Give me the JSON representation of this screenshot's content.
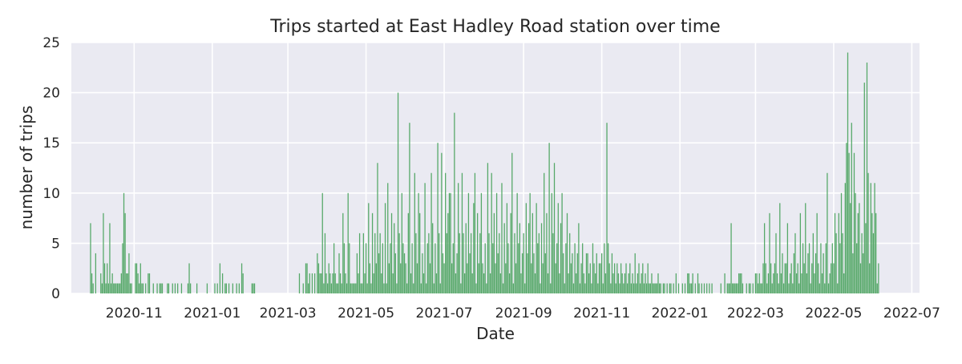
{
  "chart_data": {
    "type": "bar",
    "title": "Trips started at East Hadley Road station over time",
    "xlabel": "Date",
    "ylabel": "number of trips",
    "x_range": [
      "2020-09-13",
      "2022-07-07"
    ],
    "ylim": [
      0,
      25
    ],
    "x_ticks": [
      "2020-11",
      "2021-01",
      "2021-03",
      "2021-05",
      "2021-07",
      "2021-09",
      "2021-11",
      "2022-01",
      "2022-03",
      "2022-05",
      "2022-07"
    ],
    "y_ticks": [
      "0",
      "5",
      "10",
      "15",
      "20",
      "25"
    ],
    "grid": true,
    "bar_color": "#55a868",
    "plot_background": "#eaeaf2",
    "grid_color": "#ffffff",
    "x": [
      "2020-09-28",
      "2020-09-29",
      "2020-09-30",
      "2020-10-02",
      "2020-10-06",
      "2020-10-07",
      "2020-10-08",
      "2020-10-09",
      "2020-10-10",
      "2020-10-11",
      "2020-10-12",
      "2020-10-13",
      "2020-10-14",
      "2020-10-15",
      "2020-10-16",
      "2020-10-17",
      "2020-10-18",
      "2020-10-19",
      "2020-10-20",
      "2020-10-21",
      "2020-10-22",
      "2020-10-23",
      "2020-10-24",
      "2020-10-25",
      "2020-10-26",
      "2020-10-27",
      "2020-10-28",
      "2020-10-29",
      "2020-10-30",
      "2020-11-02",
      "2020-11-03",
      "2020-11-04",
      "2020-11-05",
      "2020-11-06",
      "2020-11-07",
      "2020-11-08",
      "2020-11-10",
      "2020-11-12",
      "2020-11-13",
      "2020-11-16",
      "2020-11-19",
      "2020-11-21",
      "2020-11-22",
      "2020-11-23",
      "2020-11-27",
      "2020-11-28",
      "2020-12-01",
      "2020-12-03",
      "2020-12-05",
      "2020-12-08",
      "2020-12-13",
      "2020-12-14",
      "2020-12-15",
      "2020-12-20",
      "2020-12-28",
      "2021-01-03",
      "2021-01-05",
      "2021-01-07",
      "2021-01-09",
      "2021-01-11",
      "2021-01-12",
      "2021-01-14",
      "2021-01-17",
      "2021-01-20",
      "2021-01-22",
      "2021-01-24",
      "2021-01-25",
      "2021-02-01",
      "2021-02-02",
      "2021-02-03",
      "2021-03-10",
      "2021-03-13",
      "2021-03-15",
      "2021-03-16",
      "2021-03-17",
      "2021-03-18",
      "2021-03-20",
      "2021-03-22",
      "2021-03-24",
      "2021-03-25",
      "2021-03-26",
      "2021-03-27",
      "2021-03-28",
      "2021-03-29",
      "2021-03-30",
      "2021-03-31",
      "2021-04-01",
      "2021-04-02",
      "2021-04-03",
      "2021-04-04",
      "2021-04-05",
      "2021-04-06",
      "2021-04-07",
      "2021-04-08",
      "2021-04-09",
      "2021-04-10",
      "2021-04-11",
      "2021-04-12",
      "2021-04-13",
      "2021-04-14",
      "2021-04-15",
      "2021-04-16",
      "2021-04-17",
      "2021-04-18",
      "2021-04-19",
      "2021-04-20",
      "2021-04-21",
      "2021-04-22",
      "2021-04-23",
      "2021-04-24",
      "2021-04-25",
      "2021-04-26",
      "2021-04-27",
      "2021-04-28",
      "2021-04-29",
      "2021-04-30",
      "2021-05-01",
      "2021-05-02",
      "2021-05-03",
      "2021-05-04",
      "2021-05-05",
      "2021-05-06",
      "2021-05-07",
      "2021-05-08",
      "2021-05-09",
      "2021-05-10",
      "2021-05-11",
      "2021-05-12",
      "2021-05-13",
      "2021-05-14",
      "2021-05-15",
      "2021-05-16",
      "2021-05-17",
      "2021-05-18",
      "2021-05-19",
      "2021-05-20",
      "2021-05-21",
      "2021-05-22",
      "2021-05-23",
      "2021-05-24",
      "2021-05-25",
      "2021-05-26",
      "2021-05-27",
      "2021-05-28",
      "2021-05-29",
      "2021-05-30",
      "2021-05-31",
      "2021-06-01",
      "2021-06-02",
      "2021-06-03",
      "2021-06-04",
      "2021-06-05",
      "2021-06-06",
      "2021-06-07",
      "2021-06-08",
      "2021-06-09",
      "2021-06-10",
      "2021-06-11",
      "2021-06-12",
      "2021-06-13",
      "2021-06-14",
      "2021-06-15",
      "2021-06-16",
      "2021-06-17",
      "2021-06-18",
      "2021-06-19",
      "2021-06-20",
      "2021-06-21",
      "2021-06-22",
      "2021-06-23",
      "2021-06-24",
      "2021-06-25",
      "2021-06-26",
      "2021-06-27",
      "2021-06-28",
      "2021-06-29",
      "2021-06-30",
      "2021-07-01",
      "2021-07-02",
      "2021-07-03",
      "2021-07-04",
      "2021-07-05",
      "2021-07-06",
      "2021-07-07",
      "2021-07-08",
      "2021-07-09",
      "2021-07-10",
      "2021-07-11",
      "2021-07-12",
      "2021-07-13",
      "2021-07-14",
      "2021-07-15",
      "2021-07-16",
      "2021-07-17",
      "2021-07-18",
      "2021-07-19",
      "2021-07-20",
      "2021-07-21",
      "2021-07-22",
      "2021-07-23",
      "2021-07-24",
      "2021-07-25",
      "2021-07-26",
      "2021-07-27",
      "2021-07-28",
      "2021-07-29",
      "2021-07-30",
      "2021-07-31",
      "2021-08-01",
      "2021-08-02",
      "2021-08-03",
      "2021-08-04",
      "2021-08-05",
      "2021-08-06",
      "2021-08-07",
      "2021-08-08",
      "2021-08-09",
      "2021-08-10",
      "2021-08-11",
      "2021-08-12",
      "2021-08-13",
      "2021-08-14",
      "2021-08-15",
      "2021-08-16",
      "2021-08-17",
      "2021-08-18",
      "2021-08-19",
      "2021-08-20",
      "2021-08-21",
      "2021-08-22",
      "2021-08-23",
      "2021-08-24",
      "2021-08-25",
      "2021-08-26",
      "2021-08-27",
      "2021-08-28",
      "2021-08-29",
      "2021-08-30",
      "2021-08-31",
      "2021-09-01",
      "2021-09-02",
      "2021-09-03",
      "2021-09-04",
      "2021-09-05",
      "2021-09-06",
      "2021-09-07",
      "2021-09-08",
      "2021-09-09",
      "2021-09-10",
      "2021-09-11",
      "2021-09-12",
      "2021-09-13",
      "2021-09-14",
      "2021-09-15",
      "2021-09-16",
      "2021-09-17",
      "2021-09-18",
      "2021-09-19",
      "2021-09-20",
      "2021-09-21",
      "2021-09-22",
      "2021-09-23",
      "2021-09-24",
      "2021-09-25",
      "2021-09-26",
      "2021-09-27",
      "2021-09-28",
      "2021-09-29",
      "2021-09-30",
      "2021-10-01",
      "2021-10-02",
      "2021-10-03",
      "2021-10-04",
      "2021-10-05",
      "2021-10-06",
      "2021-10-07",
      "2021-10-08",
      "2021-10-09",
      "2021-10-10",
      "2021-10-11",
      "2021-10-12",
      "2021-10-13",
      "2021-10-14",
      "2021-10-15",
      "2021-10-16",
      "2021-10-17",
      "2021-10-18",
      "2021-10-19",
      "2021-10-20",
      "2021-10-21",
      "2021-10-22",
      "2021-10-23",
      "2021-10-24",
      "2021-10-25",
      "2021-10-26",
      "2021-10-27",
      "2021-10-28",
      "2021-10-29",
      "2021-10-30",
      "2021-10-31",
      "2021-11-01",
      "2021-11-02",
      "2021-11-03",
      "2021-11-04",
      "2021-11-05",
      "2021-11-06",
      "2021-11-07",
      "2021-11-08",
      "2021-11-09",
      "2021-11-10",
      "2021-11-11",
      "2021-11-12",
      "2021-11-13",
      "2021-11-14",
      "2021-11-15",
      "2021-11-16",
      "2021-11-17",
      "2021-11-18",
      "2021-11-19",
      "2021-11-20",
      "2021-11-21",
      "2021-11-22",
      "2021-11-23",
      "2021-11-24",
      "2021-11-25",
      "2021-11-26",
      "2021-11-27",
      "2021-11-28",
      "2021-11-29",
      "2021-11-30",
      "2021-12-01",
      "2021-12-02",
      "2021-12-03",
      "2021-12-04",
      "2021-12-05",
      "2021-12-06",
      "2021-12-07",
      "2021-12-08",
      "2021-12-09",
      "2021-12-10",
      "2021-12-11",
      "2021-12-12",
      "2021-12-13",
      "2021-12-14",
      "2021-12-15",
      "2021-12-16",
      "2021-12-17",
      "2021-12-19",
      "2021-12-20",
      "2021-12-22",
      "2021-12-24",
      "2021-12-25",
      "2021-12-27",
      "2021-12-29",
      "2021-12-31",
      "2022-01-03",
      "2022-01-05",
      "2022-01-07",
      "2022-01-08",
      "2022-01-09",
      "2022-01-10",
      "2022-01-11",
      "2022-01-13",
      "2022-01-15",
      "2022-01-16",
      "2022-01-18",
      "2022-01-20",
      "2022-01-22",
      "2022-01-24",
      "2022-01-26",
      "2022-02-02",
      "2022-02-05",
      "2022-02-07",
      "2022-02-08",
      "2022-02-09",
      "2022-02-10",
      "2022-02-11",
      "2022-02-12",
      "2022-02-13",
      "2022-02-14",
      "2022-02-15",
      "2022-02-16",
      "2022-02-17",
      "2022-02-18",
      "2022-02-19",
      "2022-02-22",
      "2022-02-24",
      "2022-02-25",
      "2022-02-27",
      "2022-03-01",
      "2022-03-02",
      "2022-03-03",
      "2022-03-04",
      "2022-03-05",
      "2022-03-06",
      "2022-03-07",
      "2022-03-08",
      "2022-03-09",
      "2022-03-10",
      "2022-03-11",
      "2022-03-12",
      "2022-03-13",
      "2022-03-14",
      "2022-03-15",
      "2022-03-16",
      "2022-03-17",
      "2022-03-18",
      "2022-03-19",
      "2022-03-20",
      "2022-03-21",
      "2022-03-22",
      "2022-03-23",
      "2022-03-24",
      "2022-03-25",
      "2022-03-26",
      "2022-03-27",
      "2022-03-28",
      "2022-03-29",
      "2022-03-30",
      "2022-03-31",
      "2022-04-01",
      "2022-04-02",
      "2022-04-03",
      "2022-04-04",
      "2022-04-05",
      "2022-04-06",
      "2022-04-07",
      "2022-04-08",
      "2022-04-09",
      "2022-04-10",
      "2022-04-11",
      "2022-04-12",
      "2022-04-13",
      "2022-04-14",
      "2022-04-15",
      "2022-04-16",
      "2022-04-17",
      "2022-04-18",
      "2022-04-19",
      "2022-04-20",
      "2022-04-21",
      "2022-04-22",
      "2022-04-23",
      "2022-04-24",
      "2022-04-25",
      "2022-04-26",
      "2022-04-27",
      "2022-04-28",
      "2022-04-29",
      "2022-04-30",
      "2022-05-01",
      "2022-05-02",
      "2022-05-03",
      "2022-05-04",
      "2022-05-05",
      "2022-05-06",
      "2022-05-07",
      "2022-05-08",
      "2022-05-09",
      "2022-05-10",
      "2022-05-11",
      "2022-05-12",
      "2022-05-13",
      "2022-05-14",
      "2022-05-15",
      "2022-05-16",
      "2022-05-17",
      "2022-05-18",
      "2022-05-19",
      "2022-05-20",
      "2022-05-21",
      "2022-05-22",
      "2022-05-23",
      "2022-05-24",
      "2022-05-25",
      "2022-05-26",
      "2022-05-27",
      "2022-05-28",
      "2022-05-29",
      "2022-05-30",
      "2022-05-31",
      "2022-06-01",
      "2022-06-02",
      "2022-06-03",
      "2022-06-04",
      "2022-06-05"
    ],
    "values": [
      7,
      2,
      1,
      4,
      2,
      1,
      8,
      3,
      1,
      3,
      1,
      7,
      1,
      2,
      1,
      1,
      1,
      1,
      1,
      1,
      2,
      5,
      10,
      8,
      2,
      2,
      4,
      1,
      1,
      3,
      3,
      2,
      1,
      3,
      1,
      1,
      1,
      2,
      2,
      1,
      1,
      1,
      1,
      1,
      1,
      1,
      1,
      1,
      1,
      1,
      1,
      3,
      1,
      1,
      1,
      1,
      1,
      3,
      2,
      1,
      1,
      1,
      1,
      1,
      1,
      3,
      2,
      1,
      1,
      1,
      2,
      1,
      3,
      3,
      1,
      2,
      2,
      2,
      4,
      3,
      2,
      2,
      10,
      1,
      6,
      2,
      1,
      3,
      2,
      1,
      2,
      5,
      2,
      1,
      1,
      4,
      2,
      1,
      8,
      5,
      2,
      1,
      10,
      5,
      1,
      1,
      1,
      1,
      1,
      4,
      2,
      6,
      1,
      1,
      6,
      2,
      5,
      1,
      9,
      3,
      1,
      8,
      2,
      6,
      3,
      13,
      4,
      6,
      2,
      5,
      1,
      9,
      1,
      11,
      3,
      5,
      8,
      2,
      7,
      4,
      1,
      20,
      6,
      3,
      10,
      5,
      4,
      3,
      1,
      8,
      17,
      2,
      5,
      1,
      12,
      6,
      3,
      10,
      8,
      1,
      4,
      2,
      11,
      1,
      5,
      6,
      3,
      12,
      7,
      1,
      5,
      2,
      15,
      6,
      1,
      14,
      4,
      3,
      12,
      6,
      8,
      10,
      10,
      3,
      5,
      18,
      2,
      4,
      11,
      6,
      1,
      12,
      6,
      2,
      7,
      3,
      10,
      4,
      6,
      2,
      9,
      12,
      1,
      8,
      3,
      6,
      10,
      3,
      2,
      5,
      1,
      13,
      6,
      2,
      12,
      5,
      8,
      3,
      10,
      4,
      6,
      2,
      11,
      1,
      7,
      3,
      9,
      5,
      2,
      8,
      14,
      1,
      6,
      3,
      10,
      5,
      7,
      2,
      4,
      6,
      1,
      9,
      4,
      7,
      10,
      3,
      8,
      4,
      2,
      9,
      5,
      6,
      1,
      7,
      3,
      12,
      4,
      8,
      2,
      15,
      1,
      10,
      6,
      13,
      3,
      5,
      9,
      2,
      7,
      10,
      4,
      1,
      5,
      8,
      2,
      6,
      3,
      4,
      1,
      5,
      2,
      4,
      7,
      1,
      3,
      5,
      2,
      1,
      4,
      4,
      2,
      3,
      1,
      5,
      3,
      2,
      4,
      1,
      3,
      3,
      4,
      1,
      5,
      2,
      17,
      5,
      3,
      1,
      4,
      2,
      3,
      1,
      3,
      2,
      1,
      3,
      2,
      1,
      2,
      3,
      1,
      2,
      3,
      1,
      2,
      1,
      4,
      1,
      2,
      3,
      1,
      2,
      3,
      1,
      2,
      1,
      3,
      1,
      1,
      2,
      1,
      1,
      1,
      1,
      2,
      1,
      1,
      1,
      1,
      1,
      1,
      1,
      1,
      2,
      1,
      1,
      1,
      2,
      2,
      1,
      1,
      2,
      1,
      2,
      1,
      1,
      1,
      1,
      1,
      1,
      1,
      2,
      1,
      1,
      1,
      7,
      1,
      1,
      1,
      1,
      1,
      2,
      2,
      2,
      1,
      1,
      1,
      1,
      1,
      2,
      2,
      1,
      2,
      1,
      1,
      3,
      7,
      3,
      1,
      2,
      8,
      3,
      1,
      2,
      3,
      6,
      2,
      1,
      9,
      2,
      4,
      1,
      3,
      3,
      7,
      1,
      2,
      3,
      1,
      4,
      6,
      2,
      3,
      1,
      8,
      2,
      5,
      3,
      9,
      2,
      4,
      5,
      1,
      3,
      6,
      2,
      4,
      8,
      3,
      1,
      5,
      2,
      4,
      1,
      5,
      12,
      1,
      2,
      3,
      5,
      3,
      8,
      6,
      1,
      8,
      5,
      10,
      6,
      2,
      11,
      15,
      24,
      14,
      9,
      17,
      4,
      14,
      10,
      5,
      8,
      9,
      3,
      6,
      4,
      21,
      7,
      23,
      12,
      3,
      11,
      8,
      6,
      11,
      8,
      1,
      3
    ]
  }
}
